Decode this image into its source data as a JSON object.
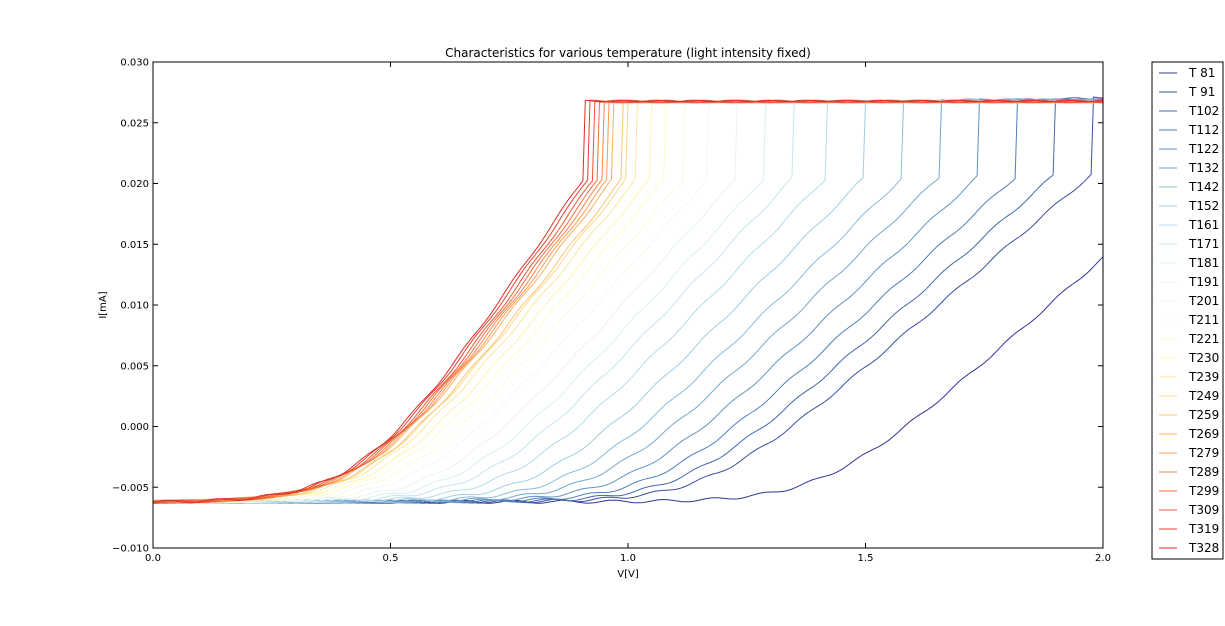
{
  "chart_data": {
    "type": "line",
    "title": "Characteristics for various temperature (light intensity fixed)",
    "xlabel": "V[V]",
    "ylabel": "I[mA]",
    "xlim": [
      0.0,
      2.0
    ],
    "ylim": [
      -0.01,
      0.03
    ],
    "x_ticks": [
      "0.0",
      "0.5",
      "1.0",
      "1.5",
      "2.0"
    ],
    "y_ticks": [
      "−0.010",
      "−0.005",
      "0.000",
      "0.005",
      "0.010",
      "0.015",
      "0.020",
      "0.025",
      "0.030"
    ],
    "grid": false,
    "legend_position": "outside-right",
    "colormap": "RdYlBu_r",
    "series": [
      {
        "name": "T 81",
        "color": "#313695",
        "knee_v": 2.2,
        "sat_i": 0.027,
        "slope": 0.0345
      },
      {
        "name": "T 91",
        "color": "#3a4f9f",
        "knee_v": 1.98,
        "sat_i": 0.0271,
        "slope": 0.0335
      },
      {
        "name": "T102",
        "color": "#4467ac",
        "knee_v": 1.9,
        "sat_i": 0.027,
        "slope": 0.0345
      },
      {
        "name": "T112",
        "color": "#4f7fba",
        "knee_v": 1.82,
        "sat_i": 0.0269,
        "slope": 0.0355
      },
      {
        "name": "T122",
        "color": "#6193c4",
        "knee_v": 1.74,
        "sat_i": 0.0269,
        "slope": 0.0365
      },
      {
        "name": "T132",
        "color": "#75a8cf",
        "knee_v": 1.66,
        "sat_i": 0.0269,
        "slope": 0.0375
      },
      {
        "name": "T142",
        "color": "#8abcd9",
        "knee_v": 1.58,
        "sat_i": 0.0268,
        "slope": 0.0385
      },
      {
        "name": "T152",
        "color": "#9fcde3",
        "knee_v": 1.5,
        "sat_i": 0.0268,
        "slope": 0.0395
      },
      {
        "name": "T161",
        "color": "#b4dbea",
        "knee_v": 1.42,
        "sat_i": 0.0268,
        "slope": 0.0405
      },
      {
        "name": "T171",
        "color": "#c7e5ef",
        "knee_v": 1.35,
        "sat_i": 0.0268,
        "slope": 0.0415
      },
      {
        "name": "T181",
        "color": "#d9eff3",
        "knee_v": 1.29,
        "sat_i": 0.0268,
        "slope": 0.0425
      },
      {
        "name": "T191",
        "color": "#e8f5ef",
        "knee_v": 1.23,
        "sat_i": 0.0267,
        "slope": 0.0435
      },
      {
        "name": "T201",
        "color": "#f2faea",
        "knee_v": 1.17,
        "sat_i": 0.0267,
        "slope": 0.0445
      },
      {
        "name": "T211",
        "color": "#f9fbdc",
        "knee_v": 1.12,
        "sat_i": 0.0267,
        "slope": 0.0455
      },
      {
        "name": "T221",
        "color": "#fefcca",
        "knee_v": 1.08,
        "sat_i": 0.0267,
        "slope": 0.0465
      },
      {
        "name": "T230",
        "color": "#fff3b2",
        "knee_v": 1.05,
        "sat_i": 0.0267,
        "slope": 0.0475
      },
      {
        "name": "T239",
        "color": "#fee79c",
        "knee_v": 1.02,
        "sat_i": 0.0267,
        "slope": 0.0485
      },
      {
        "name": "T249",
        "color": "#fed887",
        "knee_v": 1.0,
        "sat_i": 0.0267,
        "slope": 0.0495
      },
      {
        "name": "T259",
        "color": "#fec574",
        "knee_v": 0.99,
        "sat_i": 0.0267,
        "slope": 0.0505
      },
      {
        "name": "T269",
        "color": "#fdb063",
        "knee_v": 0.97,
        "sat_i": 0.0267,
        "slope": 0.0515
      },
      {
        "name": "T279",
        "color": "#fb9a55",
        "knee_v": 0.96,
        "sat_i": 0.0267,
        "slope": 0.0525
      },
      {
        "name": "T289",
        "color": "#f7844a",
        "knee_v": 0.95,
        "sat_i": 0.0267,
        "slope": 0.0535
      },
      {
        "name": "T299",
        "color": "#f26d3f",
        "knee_v": 0.94,
        "sat_i": 0.0267,
        "slope": 0.0545
      },
      {
        "name": "T309",
        "color": "#ea5736",
        "knee_v": 0.93,
        "sat_i": 0.0267,
        "slope": 0.0555
      },
      {
        "name": "T319",
        "color": "#e0432d",
        "knee_v": 0.92,
        "sat_i": 0.0268,
        "slope": 0.0565
      },
      {
        "name": "T328",
        "color": "#d73027",
        "knee_v": 0.91,
        "sat_i": 0.0268,
        "slope": 0.0575
      }
    ],
    "dark_current": -0.0062
  }
}
